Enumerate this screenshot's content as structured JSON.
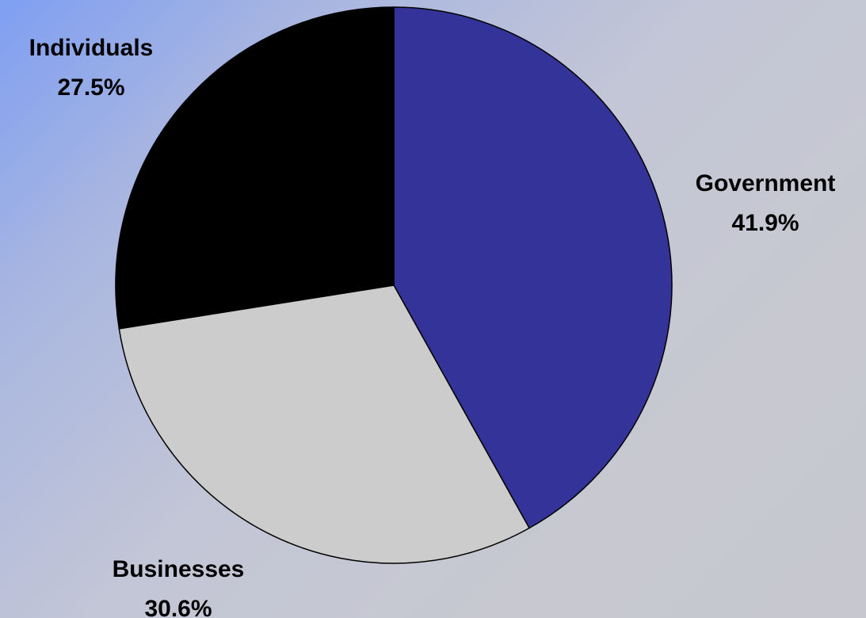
{
  "chart_data": {
    "type": "pie",
    "title": "",
    "start_angle_deg": 0,
    "direction": "clockwise",
    "slices": [
      {
        "label": "Government",
        "value": 41.9,
        "value_label": "41.9%",
        "color": "#333399"
      },
      {
        "label": "Businesses",
        "value": 30.6,
        "value_label": "30.6%",
        "color": "#cccccc"
      },
      {
        "label": "Individuals",
        "value": 27.5,
        "value_label": "27.5%",
        "color": "#000000"
      }
    ],
    "edge_color": "#000000"
  }
}
